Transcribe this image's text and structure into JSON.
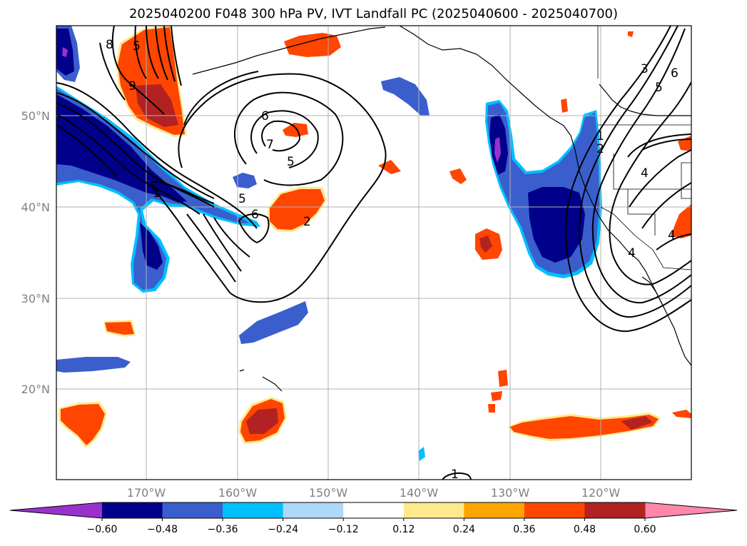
{
  "title": "2025040200 F048 300 hPa PV, IVT Landfall PC (2025040600 - 2025040700)",
  "lat_labels": [
    "50°N",
    "40°N",
    "30°N",
    "20°N"
  ],
  "lon_labels": [
    "170°W",
    "160°W",
    "150°W",
    "140°W",
    "130°W",
    "120°W"
  ],
  "colorbar": {
    "ticks": [
      "−0.60",
      "−0.48",
      "−0.36",
      "−0.24",
      "−0.12",
      "0.12",
      "0.24",
      "0.36",
      "0.48",
      "0.60"
    ],
    "colors": [
      "#9932cc",
      "#00008b",
      "#3a5fcd",
      "#00bfff",
      "#add8f7",
      "#ffffff",
      "#ffe98a",
      "#ffa500",
      "#ff4500",
      "#b22222",
      "#ff88aa"
    ]
  },
  "contour_labels": [
    "8",
    "5",
    "9",
    "6",
    "7",
    "5",
    "1",
    "5",
    "6",
    "2",
    "3",
    "5",
    "6",
    "1",
    "2",
    "4",
    "4",
    "4",
    "1"
  ],
  "colors": {
    "neg_dark": "#00008b",
    "neg_mid": "#3a5fcd",
    "neg_light": "#00bfff",
    "pos_mid": "#ff4500",
    "pos_dark": "#b22222",
    "pos_light": "#ffe98a",
    "pos_orange": "#ffa500"
  }
}
